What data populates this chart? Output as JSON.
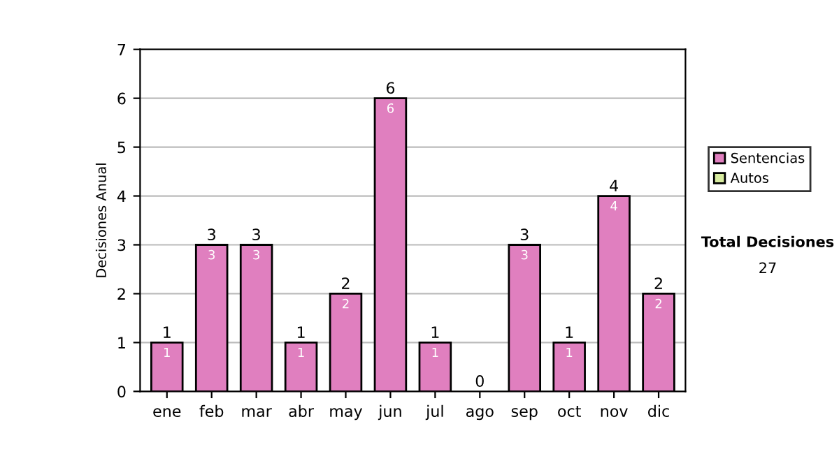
{
  "chart_data": {
    "type": "bar",
    "stacked": true,
    "ylabel": "Decisiones Anual",
    "categories": [
      "ene",
      "feb",
      "mar",
      "abr",
      "may",
      "jun",
      "jul",
      "ago",
      "sep",
      "oct",
      "nov",
      "dic"
    ],
    "series": [
      {
        "name": "Sentencias",
        "color": "#e07fbf",
        "values": [
          1,
          3,
          3,
          1,
          2,
          6,
          1,
          0,
          3,
          1,
          4,
          2
        ],
        "value_labels": [
          "1",
          "3",
          "3",
          "1",
          "2",
          "6",
          "1",
          null,
          "3",
          "1",
          "4",
          "2"
        ]
      },
      {
        "name": "Autos",
        "color": "#d8eca0",
        "values": [
          0,
          0,
          0,
          0,
          0,
          0,
          0,
          0,
          0,
          0,
          0,
          0
        ]
      }
    ],
    "totals": [
      "1",
      "3",
      "3",
      "1",
      "2",
      "6",
      "1",
      "0",
      "3",
      "1",
      "4",
      "2"
    ],
    "ylim": [
      0,
      7
    ],
    "yticks": [
      0,
      1,
      2,
      3,
      4,
      5,
      6,
      7
    ],
    "grid": "y",
    "legend": "right",
    "annotations": [
      "Total Decisiones",
      "27"
    ]
  }
}
